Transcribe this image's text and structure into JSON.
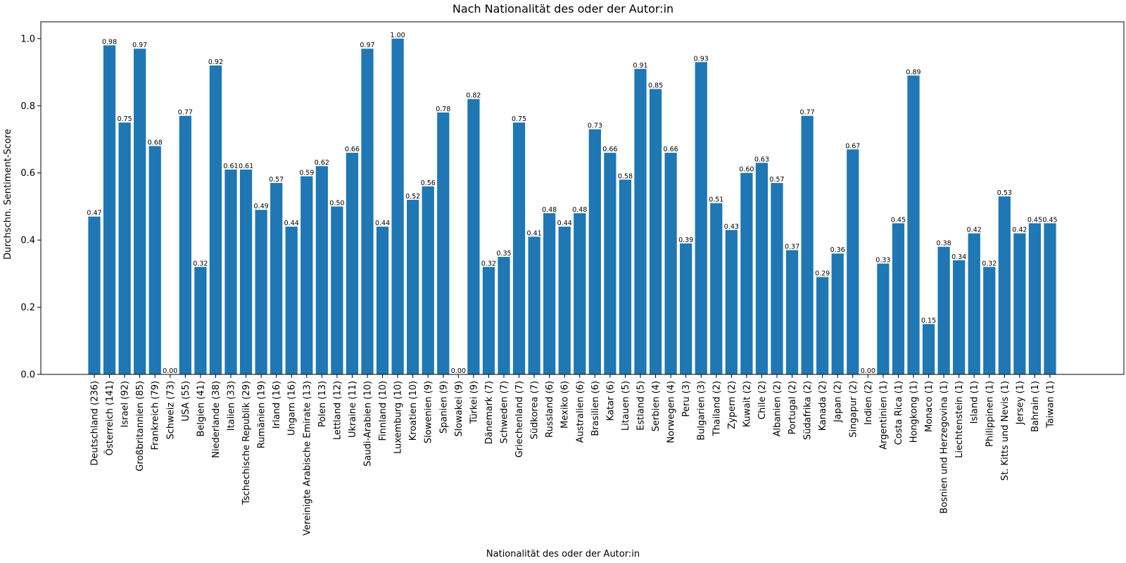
{
  "chart_data": {
    "type": "bar",
    "title": "Nach Nationalität des oder der Autor:in",
    "xlabel": "Nationalität des oder der Autor:in",
    "ylabel": "Durchschn. Sentiment-Score",
    "ylim": [
      0,
      1.05
    ],
    "yticks": [
      "0.0",
      "0.2",
      "0.4",
      "0.6",
      "0.8",
      "1.0"
    ],
    "grid": false,
    "bar_color": "#1f77b4",
    "categories": [
      "Deutschland (236)",
      "Österreich (141)",
      "Israel (92)",
      "Großbritannien (85)",
      "Frankreich (79)",
      "Schweiz (73)",
      "USA (55)",
      "Belgien (41)",
      "Niederlande (38)",
      "Italien (33)",
      "Tschechische Republik (29)",
      "Rumänien (19)",
      "Irland (16)",
      "Ungarn (16)",
      "Vereinigte Arabische Emirate (13)",
      "Polen (13)",
      "Lettland (12)",
      "Ukraine (11)",
      "Saudi-Arabien (10)",
      "Finnland (10)",
      "Luxemburg (10)",
      "Kroatien (10)",
      "Slowenien (9)",
      "Spanien (9)",
      "Slowakei (9)",
      "Türkei (9)",
      "Dänemark (7)",
      "Schweden (7)",
      "Griechenland (7)",
      "Südkorea (7)",
      "Russland (6)",
      "Mexiko (6)",
      "Australien (6)",
      "Brasilien (6)",
      "Katar (6)",
      "Litauen (5)",
      "Estland (5)",
      "Serbien (4)",
      "Norwegen (4)",
      "Peru (3)",
      "Bulgarien (3)",
      "Thailand (2)",
      "Zypern (2)",
      "Kuwait (2)",
      "Chile (2)",
      "Albanien (2)",
      "Portugal (2)",
      "Südafrika (2)",
      "Kanada (2)",
      "Japan (2)",
      "Singapur (2)",
      "Indien (2)",
      "Argentinien (1)",
      "Costa Rica (1)",
      "Hongkong (1)",
      "Monaco (1)",
      "Bosnien und Herzegovina (1)",
      "Liechtenstein (1)",
      "Island (1)",
      "Philippinen (1)",
      "St. Kitts und Nevis (1)",
      "Jersey (1)",
      "Bahrain (1)",
      "Taiwan (1)"
    ],
    "values": [
      0.47,
      0.98,
      0.75,
      0.97,
      0.68,
      0.0,
      0.77,
      0.32,
      0.92,
      0.61,
      0.61,
      0.49,
      0.57,
      0.44,
      0.59,
      0.62,
      0.5,
      0.66,
      0.97,
      0.44,
      1.0,
      0.52,
      0.56,
      0.78,
      0.0,
      0.82,
      0.32,
      0.35,
      0.75,
      0.41,
      0.48,
      0.44,
      0.48,
      0.73,
      0.66,
      0.58,
      0.91,
      0.85,
      0.66,
      0.39,
      0.93,
      0.51,
      0.43,
      0.6,
      0.63,
      0.57,
      0.37,
      0.77,
      0.29,
      0.36,
      0.67,
      0.0,
      0.33,
      0.45,
      0.89,
      0.15,
      0.38,
      0.34,
      0.42,
      0.32,
      0.53,
      0.42,
      0.45,
      0.45
    ],
    "data_labels": [
      "0.47",
      "0.98",
      "0.75",
      "0.97",
      "0.68",
      "0.00",
      "0.77",
      "0.32",
      "0.92",
      "0.61",
      "0.61",
      "0.49",
      "0.57",
      "0.44",
      "0.59",
      "0.62",
      "0.50",
      "0.66",
      "0.97",
      "0.44",
      "1.00",
      "0.52",
      "0.56",
      "0.78",
      "0.00",
      "0.82",
      "0.32",
      "0.35",
      "0.75",
      "0.41",
      "0.48",
      "0.44",
      "0.48",
      "0.73",
      "0.66",
      "0.58",
      "0.91",
      "0.85",
      "0.66",
      "0.39",
      "0.93",
      "0.51",
      "0.43",
      "0.60",
      "0.63",
      "0.57",
      "0.37",
      "0.77",
      "0.29",
      "0.36",
      "0.67",
      "0.00",
      "0.33",
      "0.45",
      "0.89",
      "0.15",
      "0.38",
      "0.34",
      "0.42",
      "0.32",
      "0.53",
      "0.42",
      "0.45",
      "0.45"
    ]
  }
}
